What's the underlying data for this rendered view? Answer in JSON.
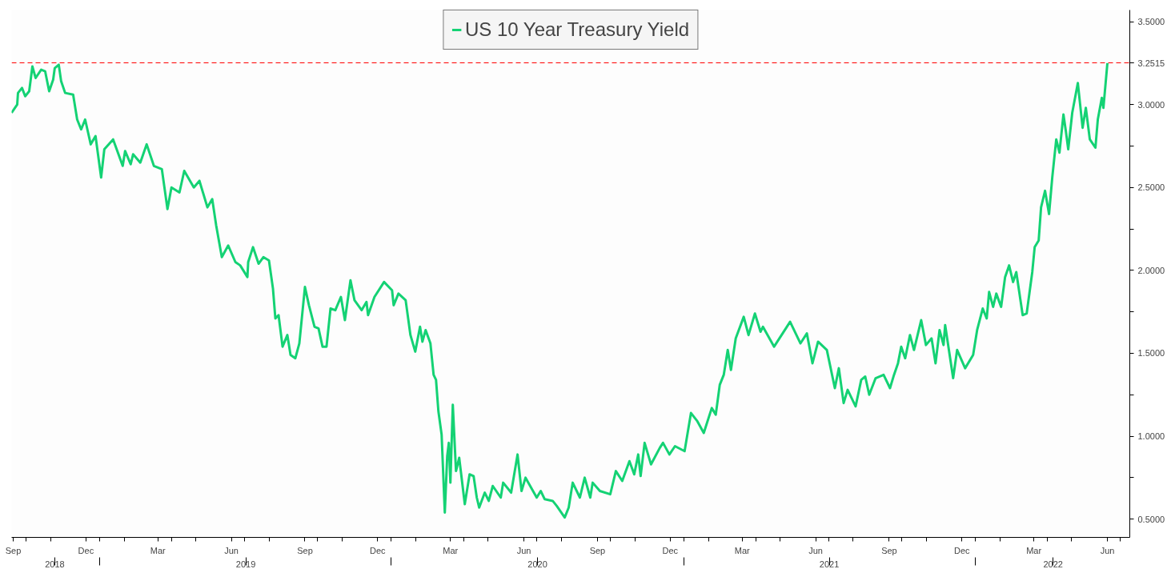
{
  "chart_data": {
    "type": "line",
    "series": [
      {
        "name": "US 10 Year Treasury Yield",
        "color": "#14d274",
        "x": [
          "2018-09-13",
          "2018-09-20",
          "2018-09-21",
          "2018-09-26",
          "2018-09-30",
          "2018-10-05",
          "2018-10-09",
          "2018-10-13",
          "2018-10-20",
          "2018-10-25",
          "2018-10-30",
          "2018-11-04",
          "2018-11-06",
          "2018-11-11",
          "2018-11-14",
          "2018-11-19",
          "2018-11-29",
          "2018-12-04",
          "2018-12-09",
          "2018-12-14",
          "2018-12-21",
          "2018-12-27",
          "2019-01-03",
          "2019-01-07",
          "2019-01-18",
          "2019-01-30",
          "2019-02-02",
          "2019-02-09",
          "2019-02-12",
          "2019-02-21",
          "2019-03-01",
          "2019-03-10",
          "2019-03-20",
          "2019-03-27",
          "2019-04-01",
          "2019-04-11",
          "2019-04-17",
          "2019-04-29",
          "2019-05-06",
          "2019-05-16",
          "2019-05-22",
          "2019-05-27",
          "2019-06-03",
          "2019-06-11",
          "2019-06-20",
          "2019-06-26",
          "2019-07-05",
          "2019-07-06",
          "2019-07-12",
          "2019-07-19",
          "2019-07-25",
          "2019-08-01",
          "2019-08-06",
          "2019-08-09",
          "2019-08-13",
          "2019-08-18",
          "2019-08-24",
          "2019-08-28",
          "2019-09-03",
          "2019-09-08",
          "2019-09-15",
          "2019-09-20",
          "2019-09-27",
          "2019-10-02",
          "2019-10-07",
          "2019-10-12",
          "2019-10-17",
          "2019-10-23",
          "2019-10-30",
          "2019-11-04",
          "2019-11-11",
          "2019-11-16",
          "2019-11-25",
          "2019-12-01",
          "2019-12-03",
          "2019-12-11",
          "2019-12-23",
          "2020-01-02",
          "2020-01-04",
          "2020-01-10",
          "2020-01-19",
          "2020-01-25",
          "2020-01-31",
          "2020-02-06",
          "2020-02-09",
          "2020-02-13",
          "2020-02-19",
          "2020-02-23",
          "2020-02-26",
          "2020-02-29",
          "2020-03-04",
          "2020-03-08",
          "2020-03-11",
          "2020-03-13",
          "2020-03-15",
          "2020-03-18",
          "2020-03-22",
          "2020-03-26",
          "2020-04-02",
          "2020-04-08",
          "2020-04-13",
          "2020-04-17",
          "2020-04-20",
          "2020-04-27",
          "2020-05-02",
          "2020-05-07",
          "2020-05-17",
          "2020-05-20",
          "2020-05-30",
          "2020-06-07",
          "2020-06-12",
          "2020-06-17",
          "2020-07-01",
          "2020-07-06",
          "2020-07-11",
          "2020-07-21",
          "2020-07-26",
          "2020-08-05",
          "2020-08-10",
          "2020-08-15",
          "2020-08-24",
          "2020-08-30",
          "2020-09-06",
          "2020-09-09",
          "2020-09-18",
          "2020-10-01",
          "2020-10-08",
          "2020-10-16",
          "2020-10-25",
          "2020-10-31",
          "2020-11-05",
          "2020-11-08",
          "2020-11-13",
          "2020-11-21",
          "2020-12-02",
          "2020-12-06",
          "2020-12-14",
          "2020-12-21",
          "2021-01-02",
          "2021-01-10",
          "2021-01-18",
          "2021-01-26",
          "2021-02-05",
          "2021-02-10",
          "2021-02-15",
          "2021-02-20",
          "2021-02-25",
          "2021-03-01",
          "2021-03-07",
          "2021-03-17",
          "2021-03-23",
          "2021-03-31",
          "2021-04-07",
          "2021-04-10",
          "2021-04-24",
          "2021-05-14",
          "2021-05-27",
          "2021-06-04",
          "2021-06-11",
          "2021-06-18",
          "2021-06-29",
          "2021-07-09",
          "2021-07-14",
          "2021-07-20",
          "2021-07-25",
          "2021-08-04",
          "2021-08-11",
          "2021-08-16",
          "2021-08-21",
          "2021-08-29",
          "2021-09-08",
          "2021-09-16",
          "2021-09-21",
          "2021-09-26",
          "2021-09-30",
          "2021-10-05",
          "2021-10-11",
          "2021-10-16",
          "2021-10-25",
          "2021-10-31",
          "2021-11-07",
          "2021-11-12",
          "2021-11-17",
          "2021-11-22",
          "2021-11-24",
          "2021-12-04",
          "2021-12-09",
          "2021-12-19",
          "2021-12-29",
          "2022-01-03",
          "2022-01-10",
          "2022-01-15",
          "2022-01-18",
          "2022-01-23",
          "2022-01-27",
          "2022-02-02",
          "2022-02-07",
          "2022-02-12",
          "2022-02-17",
          "2022-02-21",
          "2022-03-01",
          "2022-03-06",
          "2022-03-13",
          "2022-03-16",
          "2022-03-21",
          "2022-03-24",
          "2022-03-29",
          "2022-04-03",
          "2022-04-07",
          "2022-04-12",
          "2022-04-16",
          "2022-04-21",
          "2022-04-24",
          "2022-04-27",
          "2022-05-02",
          "2022-05-09",
          "2022-05-15",
          "2022-05-19",
          "2022-05-24",
          "2022-05-31",
          "2022-06-03",
          "2022-06-08",
          "2022-06-10",
          "2022-06-15"
        ],
        "values": [
          2.95,
          3.0,
          3.07,
          3.1,
          3.05,
          3.08,
          3.23,
          3.16,
          3.21,
          3.2,
          3.08,
          3.15,
          3.22,
          3.24,
          3.14,
          3.07,
          3.06,
          2.91,
          2.85,
          2.91,
          2.76,
          2.81,
          2.56,
          2.73,
          2.79,
          2.63,
          2.72,
          2.64,
          2.7,
          2.65,
          2.76,
          2.63,
          2.61,
          2.37,
          2.5,
          2.47,
          2.6,
          2.5,
          2.54,
          2.38,
          2.43,
          2.27,
          2.08,
          2.15,
          2.05,
          2.03,
          1.96,
          2.05,
          2.14,
          2.04,
          2.08,
          2.06,
          1.89,
          1.71,
          1.73,
          1.54,
          1.61,
          1.49,
          1.47,
          1.56,
          1.9,
          1.79,
          1.66,
          1.65,
          1.54,
          1.54,
          1.77,
          1.76,
          1.84,
          1.7,
          1.94,
          1.82,
          1.76,
          1.81,
          1.73,
          1.84,
          1.93,
          1.88,
          1.79,
          1.86,
          1.82,
          1.61,
          1.51,
          1.66,
          1.57,
          1.64,
          1.56,
          1.37,
          1.34,
          1.15,
          1.01,
          0.54,
          0.88,
          0.96,
          0.72,
          1.19,
          0.79,
          0.87,
          0.59,
          0.77,
          0.76,
          0.63,
          0.57,
          0.66,
          0.61,
          0.7,
          0.63,
          0.72,
          0.66,
          0.89,
          0.67,
          0.75,
          0.63,
          0.67,
          0.62,
          0.61,
          0.58,
          0.51,
          0.57,
          0.72,
          0.63,
          0.75,
          0.63,
          0.72,
          0.67,
          0.65,
          0.79,
          0.73,
          0.85,
          0.77,
          0.89,
          0.76,
          0.96,
          0.83,
          0.93,
          0.96,
          0.89,
          0.94,
          0.91,
          1.14,
          1.09,
          1.02,
          1.17,
          1.13,
          1.31,
          1.37,
          1.52,
          1.4,
          1.59,
          1.72,
          1.61,
          1.74,
          1.63,
          1.66,
          1.54,
          1.69,
          1.56,
          1.62,
          1.44,
          1.57,
          1.52,
          1.29,
          1.41,
          1.2,
          1.28,
          1.18,
          1.34,
          1.36,
          1.25,
          1.35,
          1.37,
          1.29,
          1.37,
          1.44,
          1.54,
          1.47,
          1.61,
          1.52,
          1.7,
          1.55,
          1.59,
          1.44,
          1.64,
          1.55,
          1.67,
          1.35,
          1.52,
          1.41,
          1.49,
          1.64,
          1.77,
          1.71,
          1.87,
          1.78,
          1.86,
          1.78,
          1.96,
          2.03,
          1.93,
          1.99,
          1.73,
          1.74,
          1.99,
          2.14,
          2.18,
          2.38,
          2.48,
          2.34,
          2.56,
          2.79,
          2.71,
          2.94,
          2.84,
          2.73,
          2.95,
          3.13,
          2.86,
          2.98,
          2.79,
          2.74,
          2.91,
          3.04,
          2.98,
          3.25
        ]
      }
    ],
    "xlim": [
      "2018-09-13",
      "2022-07-13"
    ],
    "xticks": [
      {
        "value": "2018-09-15",
        "label": "Sep"
      },
      {
        "value": "2018-10-01",
        "label": null
      },
      {
        "value": "2018-11-01",
        "label": null
      },
      {
        "value": "2018-12-15",
        "label": "Dec"
      },
      {
        "value": "2019-01-01",
        "label": null
      },
      {
        "value": "2019-02-01",
        "label": null
      },
      {
        "value": "2019-03-15",
        "label": "Mar"
      },
      {
        "value": "2019-04-01",
        "label": null
      },
      {
        "value": "2019-05-01",
        "label": null
      },
      {
        "value": "2019-06-15",
        "label": "Jun"
      },
      {
        "value": "2019-07-01",
        "label": null
      },
      {
        "value": "2019-08-01",
        "label": null
      },
      {
        "value": "2019-09-15",
        "label": "Sep"
      },
      {
        "value": "2019-10-01",
        "label": null
      },
      {
        "value": "2019-11-01",
        "label": null
      },
      {
        "value": "2019-12-15",
        "label": "Dec"
      },
      {
        "value": "2020-01-01",
        "label": null
      },
      {
        "value": "2020-02-01",
        "label": null
      },
      {
        "value": "2020-03-15",
        "label": "Mar"
      },
      {
        "value": "2020-04-01",
        "label": null
      },
      {
        "value": "2020-05-01",
        "label": null
      },
      {
        "value": "2020-06-15",
        "label": "Jun"
      },
      {
        "value": "2020-07-01",
        "label": null
      },
      {
        "value": "2020-08-01",
        "label": null
      },
      {
        "value": "2020-09-15",
        "label": "Sep"
      },
      {
        "value": "2020-10-01",
        "label": null
      },
      {
        "value": "2020-11-01",
        "label": null
      },
      {
        "value": "2020-12-15",
        "label": "Dec"
      },
      {
        "value": "2021-01-01",
        "label": null
      },
      {
        "value": "2021-02-01",
        "label": null
      },
      {
        "value": "2021-03-15",
        "label": "Mar"
      },
      {
        "value": "2021-04-01",
        "label": null
      },
      {
        "value": "2021-05-01",
        "label": null
      },
      {
        "value": "2021-06-15",
        "label": "Jun"
      },
      {
        "value": "2021-07-01",
        "label": null
      },
      {
        "value": "2021-08-01",
        "label": null
      },
      {
        "value": "2021-09-15",
        "label": "Sep"
      },
      {
        "value": "2021-10-01",
        "label": null
      },
      {
        "value": "2021-11-01",
        "label": null
      },
      {
        "value": "2021-12-15",
        "label": "Dec"
      },
      {
        "value": "2022-01-01",
        "label": null
      },
      {
        "value": "2022-02-01",
        "label": null
      },
      {
        "value": "2022-03-15",
        "label": "Mar"
      },
      {
        "value": "2022-04-01",
        "label": null
      },
      {
        "value": "2022-05-01",
        "label": null
      },
      {
        "value": "2022-06-15",
        "label": "Jun"
      },
      {
        "value": "2022-07-01",
        "label": null
      }
    ],
    "x2lim": [
      "2018-09-13",
      "2022-07-13"
    ],
    "x2ticks": [
      {
        "value": "2018-11-06",
        "label": "2018"
      },
      {
        "value": "2019-01-01",
        "label": null
      },
      {
        "value": "2019-07-03",
        "label": "2019"
      },
      {
        "value": "2020-01-01",
        "label": null
      },
      {
        "value": "2020-07-02",
        "label": "2020"
      },
      {
        "value": "2021-01-01",
        "label": null
      },
      {
        "value": "2021-07-02",
        "label": "2021"
      },
      {
        "value": "2022-01-01",
        "label": null
      },
      {
        "value": "2022-04-08",
        "label": "2022"
      }
    ],
    "ylim": [
      0.39,
      3.57
    ],
    "yticks": [
      {
        "value": 0.5,
        "label": "0.5000"
      },
      {
        "value": 0.75,
        "label": null
      },
      {
        "value": 1.0,
        "label": "1.0000"
      },
      {
        "value": 1.25,
        "label": null
      },
      {
        "value": 1.5,
        "label": "1.5000"
      },
      {
        "value": 1.75,
        "label": null
      },
      {
        "value": 2.0,
        "label": "2.0000"
      },
      {
        "value": 2.25,
        "label": null
      },
      {
        "value": 2.5,
        "label": "2.5000"
      },
      {
        "value": 2.75,
        "label": null
      },
      {
        "value": 3.0,
        "label": "3.0000"
      },
      {
        "value": 3.25,
        "label": null
      },
      {
        "value": 3.5,
        "label": "3.5000"
      }
    ],
    "ref_lines": [
      {
        "axis": "y",
        "value": 3.2515,
        "label": "3.2515",
        "color": "#ff0000",
        "line_style": "dashed"
      }
    ],
    "grid": false,
    "legend": "top",
    "marker": "none",
    "line_style": "solid"
  }
}
